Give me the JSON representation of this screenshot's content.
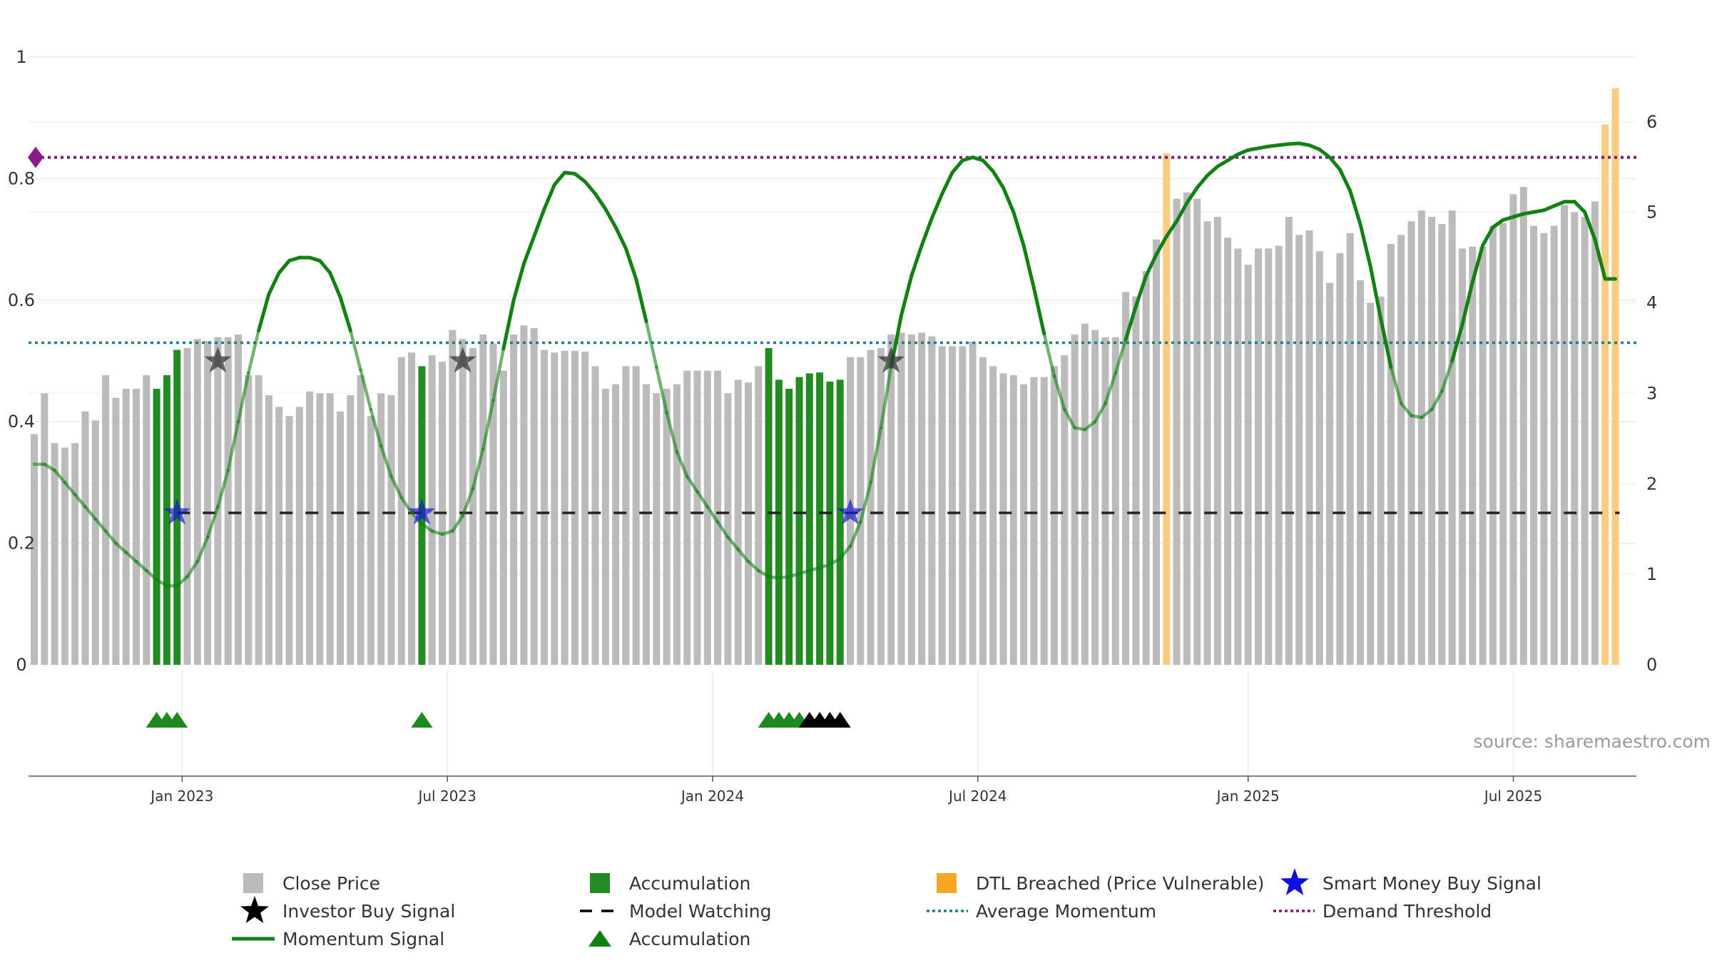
{
  "chart_data": {
    "type": "bar",
    "title": "",
    "source": "source: sharemaestro.com",
    "left_axis": {
      "range": [
        0,
        1
      ],
      "ticks": [
        0,
        0.2,
        0.4,
        0.6,
        0.8,
        1
      ],
      "tick_labels": [
        "0",
        "0.2",
        "0.4",
        "0.6",
        "0.8",
        "1"
      ]
    },
    "right_axis": {
      "range": [
        0,
        6.4
      ],
      "ticks": [
        0,
        1,
        2,
        3,
        4,
        5,
        6
      ],
      "tick_labels": [
        "0",
        "1",
        "2",
        "3",
        "4",
        "5",
        "6"
      ]
    },
    "x_ticks": [
      {
        "index": 14.5,
        "label": "Jan 2023"
      },
      {
        "index": 40.5,
        "label": "Jul 2023"
      },
      {
        "index": 66.5,
        "label": "Jan 2024"
      },
      {
        "index": 92.5,
        "label": "Jul 2024"
      },
      {
        "index": 119,
        "label": "Jan 2025"
      },
      {
        "index": 145,
        "label": "Jul 2025"
      }
    ],
    "bar_count": 156,
    "close_price": [
      2.55,
      3.0,
      2.45,
      2.4,
      2.45,
      2.8,
      2.7,
      3.2,
      2.95,
      3.05,
      3.05,
      3.2,
      3.05,
      3.05,
      3.2,
      3.5,
      3.6,
      3.58,
      3.62,
      3.62,
      3.65,
      3.2,
      3.2,
      2.98,
      2.85,
      2.75,
      2.85,
      3.02,
      3.0,
      3.0,
      2.8,
      2.98,
      3.2,
      2.75,
      3.0,
      2.98,
      3.4,
      3.45,
      3.3,
      3.42,
      3.35,
      3.7,
      3.6,
      3.5,
      3.65,
      3.55,
      3.25,
      3.65,
      3.75,
      3.72,
      3.48,
      3.45,
      3.47,
      3.47,
      3.46,
      3.3,
      3.05,
      3.1,
      3.3,
      3.3,
      3.1,
      3.0,
      3.05,
      3.1,
      3.25,
      3.25,
      3.25,
      3.25,
      3.0,
      3.15,
      3.12,
      3.3,
      3.5,
      3.15,
      3.05,
      3.18,
      3.2,
      3.22,
      3.12,
      3.15,
      3.4,
      3.4,
      3.48,
      3.5,
      3.65,
      3.67,
      3.65,
      3.67,
      3.63,
      3.52,
      3.52,
      3.52,
      3.57,
      3.4,
      3.3,
      3.22,
      3.2,
      3.1,
      3.18,
      3.18,
      3.3,
      3.42,
      3.65,
      3.77,
      3.7,
      3.62,
      3.62,
      4.12,
      4.07,
      4.35,
      4.7,
      4.73,
      5.15,
      5.22,
      5.15,
      4.9,
      4.95,
      4.72,
      4.6,
      4.42,
      4.6,
      4.6,
      4.63,
      4.95,
      4.75,
      4.8,
      4.57,
      4.22,
      4.55,
      4.77,
      4.25,
      4.0,
      4.07,
      4.65,
      4.75,
      4.9,
      5.02,
      4.95,
      4.87,
      5.02,
      4.6,
      4.62,
      4.62,
      4.85,
      4.88,
      5.2,
      5.28,
      4.85,
      4.77,
      4.85,
      5.08,
      5.0,
      4.95,
      5.12
    ],
    "close_price_note": "values in right-axis units; bar index 0..155",
    "accumulation_bars": [
      {
        "index": 12,
        "value": 3.05
      },
      {
        "index": 13,
        "value": 3.2
      },
      {
        "index": 14,
        "value": 3.48
      },
      {
        "index": 38,
        "value": 3.3
      },
      {
        "index": 72,
        "value": 3.5
      },
      {
        "index": 73,
        "value": 3.15
      },
      {
        "index": 74,
        "value": 3.05
      },
      {
        "index": 75,
        "value": 3.18
      },
      {
        "index": 76,
        "value": 3.22
      },
      {
        "index": 77,
        "value": 3.23
      },
      {
        "index": 78,
        "value": 3.13
      },
      {
        "index": 79,
        "value": 3.15
      }
    ],
    "dtl_breached_bars": [
      {
        "index": 111,
        "value": 5.65
      },
      {
        "index": 154,
        "value": 5.97
      },
      {
        "index": 155,
        "value": 6.37
      }
    ],
    "momentum_signal": [
      [
        0,
        0.33
      ],
      [
        1,
        0.33
      ],
      [
        2,
        0.32
      ],
      [
        3,
        0.3
      ],
      [
        4,
        0.28
      ],
      [
        5,
        0.26
      ],
      [
        6,
        0.24
      ],
      [
        7,
        0.22
      ],
      [
        8,
        0.2
      ],
      [
        9,
        0.185
      ],
      [
        10,
        0.17
      ],
      [
        11,
        0.155
      ],
      [
        12,
        0.14
      ],
      [
        13,
        0.13
      ],
      [
        14,
        0.13
      ],
      [
        15,
        0.145
      ],
      [
        16,
        0.17
      ],
      [
        17,
        0.21
      ],
      [
        18,
        0.26
      ],
      [
        19,
        0.32
      ],
      [
        20,
        0.4
      ],
      [
        21,
        0.48
      ],
      [
        22,
        0.55
      ],
      [
        23,
        0.61
      ],
      [
        24,
        0.645
      ],
      [
        25,
        0.665
      ],
      [
        26,
        0.67
      ],
      [
        27,
        0.67
      ],
      [
        28,
        0.665
      ],
      [
        29,
        0.645
      ],
      [
        30,
        0.605
      ],
      [
        31,
        0.55
      ],
      [
        32,
        0.485
      ],
      [
        33,
        0.42
      ],
      [
        34,
        0.36
      ],
      [
        35,
        0.31
      ],
      [
        36,
        0.275
      ],
      [
        37,
        0.25
      ],
      [
        38,
        0.232
      ],
      [
        39,
        0.22
      ],
      [
        40,
        0.215
      ],
      [
        41,
        0.22
      ],
      [
        42,
        0.245
      ],
      [
        43,
        0.29
      ],
      [
        44,
        0.355
      ],
      [
        45,
        0.435
      ],
      [
        46,
        0.52
      ],
      [
        47,
        0.6
      ],
      [
        48,
        0.66
      ],
      [
        49,
        0.705
      ],
      [
        50,
        0.75
      ],
      [
        51,
        0.79
      ],
      [
        52,
        0.81
      ],
      [
        53,
        0.808
      ],
      [
        54,
        0.795
      ],
      [
        55,
        0.775
      ],
      [
        56,
        0.75
      ],
      [
        57,
        0.72
      ],
      [
        58,
        0.685
      ],
      [
        59,
        0.635
      ],
      [
        60,
        0.565
      ],
      [
        61,
        0.49
      ],
      [
        62,
        0.415
      ],
      [
        63,
        0.35
      ],
      [
        64,
        0.31
      ],
      [
        65,
        0.285
      ],
      [
        66,
        0.26
      ],
      [
        67,
        0.235
      ],
      [
        68,
        0.21
      ],
      [
        69,
        0.19
      ],
      [
        70,
        0.17
      ],
      [
        71,
        0.155
      ],
      [
        72,
        0.145
      ],
      [
        73,
        0.143
      ],
      [
        74,
        0.145
      ],
      [
        75,
        0.15
      ],
      [
        76,
        0.155
      ],
      [
        77,
        0.16
      ],
      [
        78,
        0.165
      ],
      [
        79,
        0.175
      ],
      [
        80,
        0.195
      ],
      [
        81,
        0.235
      ],
      [
        82,
        0.3
      ],
      [
        83,
        0.39
      ],
      [
        84,
        0.49
      ],
      [
        85,
        0.575
      ],
      [
        86,
        0.64
      ],
      [
        87,
        0.69
      ],
      [
        88,
        0.735
      ],
      [
        89,
        0.775
      ],
      [
        90,
        0.81
      ],
      [
        91,
        0.83
      ],
      [
        92,
        0.835
      ],
      [
        93,
        0.83
      ],
      [
        94,
        0.812
      ],
      [
        95,
        0.785
      ],
      [
        96,
        0.745
      ],
      [
        97,
        0.69
      ],
      [
        98,
        0.62
      ],
      [
        99,
        0.545
      ],
      [
        100,
        0.475
      ],
      [
        101,
        0.42
      ],
      [
        102,
        0.39
      ],
      [
        103,
        0.387
      ],
      [
        104,
        0.4
      ],
      [
        105,
        0.43
      ],
      [
        106,
        0.48
      ],
      [
        107,
        0.535
      ],
      [
        108,
        0.59
      ],
      [
        109,
        0.64
      ],
      [
        110,
        0.675
      ],
      [
        111,
        0.705
      ],
      [
        112,
        0.73
      ],
      [
        113,
        0.76
      ],
      [
        114,
        0.785
      ],
      [
        115,
        0.805
      ],
      [
        116,
        0.82
      ],
      [
        117,
        0.83
      ],
      [
        118,
        0.84
      ],
      [
        119,
        0.847
      ],
      [
        120,
        0.85
      ],
      [
        121,
        0.853
      ],
      [
        122,
        0.855
      ],
      [
        123,
        0.857
      ],
      [
        124,
        0.858
      ],
      [
        125,
        0.855
      ],
      [
        126,
        0.848
      ],
      [
        127,
        0.835
      ],
      [
        128,
        0.815
      ],
      [
        129,
        0.78
      ],
      [
        130,
        0.725
      ],
      [
        131,
        0.655
      ],
      [
        132,
        0.57
      ],
      [
        133,
        0.49
      ],
      [
        134,
        0.43
      ],
      [
        135,
        0.41
      ],
      [
        136,
        0.407
      ],
      [
        137,
        0.42
      ],
      [
        138,
        0.45
      ],
      [
        139,
        0.5
      ],
      [
        140,
        0.56
      ],
      [
        141,
        0.63
      ],
      [
        142,
        0.69
      ],
      [
        143,
        0.72
      ],
      [
        144,
        0.732
      ],
      [
        145,
        0.737
      ],
      [
        146,
        0.742
      ],
      [
        147,
        0.745
      ],
      [
        148,
        0.748
      ],
      [
        149,
        0.755
      ],
      [
        150,
        0.762
      ],
      [
        151,
        0.762
      ],
      [
        152,
        0.745
      ],
      [
        153,
        0.7
      ],
      [
        154,
        0.635
      ],
      [
        155,
        0.635
      ]
    ],
    "momentum_note": "left-axis units, x = bar index",
    "average_momentum": 0.53,
    "demand_threshold": 0.835,
    "model_watching": 0.25,
    "model_watching_from_index": 14,
    "smart_money_buy_signal": [
      {
        "index": 14,
        "value": 0.25
      },
      {
        "index": 38,
        "value": 0.25
      },
      {
        "index": 80,
        "value": 0.25
      }
    ],
    "investor_buy_signal": [
      {
        "index": 18,
        "value": 0.5
      },
      {
        "index": 42,
        "value": 0.5
      },
      {
        "index": 84,
        "value": 0.5
      }
    ],
    "demand_marker": {
      "index": 0,
      "value": 0.835
    },
    "accumulation_triangles": [
      {
        "index": 12,
        "color": "#1e8a1e"
      },
      {
        "index": 13,
        "color": "#1e8a1e"
      },
      {
        "index": 14,
        "color": "#1e8a1e"
      },
      {
        "index": 38,
        "color": "#1e8a1e"
      },
      {
        "index": 72,
        "color": "#1e8a1e"
      },
      {
        "index": 73,
        "color": "#1e8a1e"
      },
      {
        "index": 74,
        "color": "#1e8a1e"
      },
      {
        "index": 75,
        "color": "#1e8a1e"
      },
      {
        "index": 76,
        "color": "#000000"
      },
      {
        "index": 77,
        "color": "#000000"
      },
      {
        "index": 78,
        "color": "#000000"
      },
      {
        "index": 79,
        "color": "#000000"
      }
    ],
    "colors": {
      "close_price": "#bbbbbb",
      "accumulation": "#228b22",
      "dtl": "#f9cc7e",
      "momentum": "#138013",
      "average_momentum": "#217a8a",
      "demand_threshold": "#7a1a7a",
      "model_watching": "#222222",
      "smart_money": "#1a1acc",
      "investor": "#333333",
      "triangle": "#1e8a1e"
    },
    "legend": [
      {
        "label": "Close Price",
        "kind": "square",
        "color": "#bbbbbb"
      },
      {
        "label": "Accumulation",
        "kind": "square",
        "color": "#228b22"
      },
      {
        "label": "DTL Breached (Price Vulnerable)",
        "kind": "square",
        "color": "#f5a623"
      },
      {
        "label": "Smart Money Buy Signal",
        "kind": "star",
        "color": "#1010e0"
      },
      {
        "label": "Investor Buy Signal",
        "kind": "star",
        "color": "#000000"
      },
      {
        "label": "Model Watching",
        "kind": "dash",
        "color": "#000000"
      },
      {
        "label": "Average Momentum",
        "kind": "dot",
        "color": "#217a8a"
      },
      {
        "label": "Demand Threshold",
        "kind": "dot",
        "color": "#7a1a7a"
      },
      {
        "label": "Momentum Signal",
        "kind": "line",
        "color": "#138013"
      },
      {
        "label": "Accumulation",
        "kind": "triangle",
        "color": "#138013"
      }
    ]
  }
}
